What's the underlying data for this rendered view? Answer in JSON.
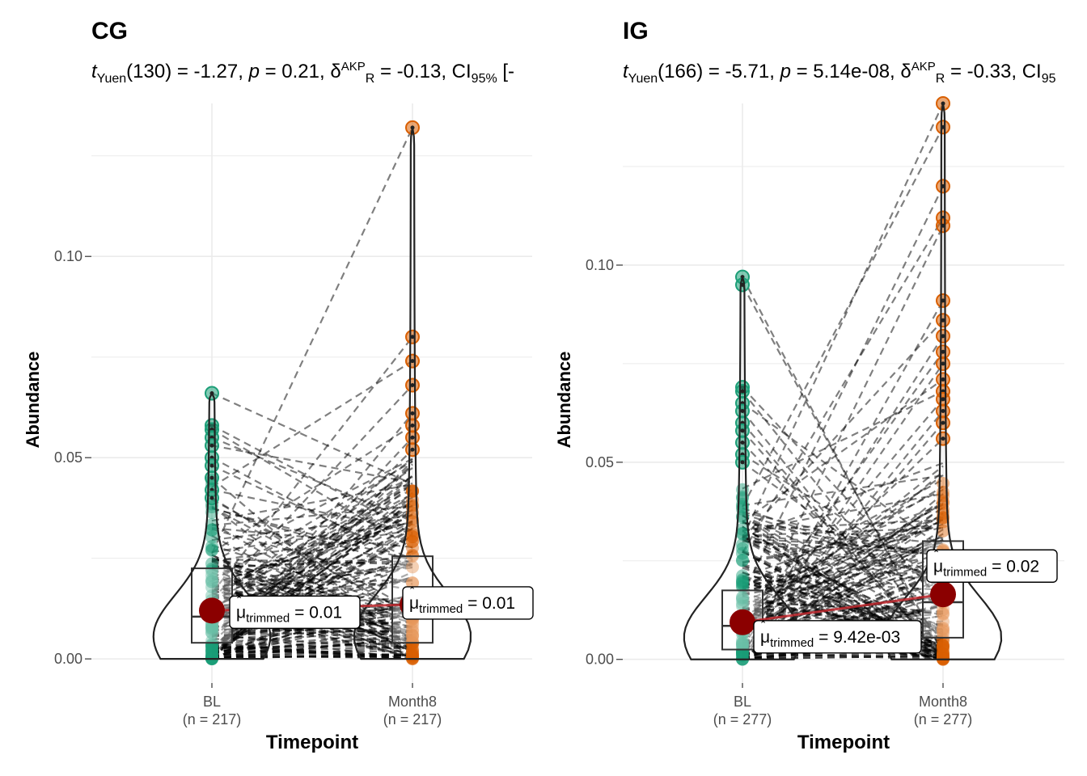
{
  "chart_data": [
    {
      "type": "violin-box-paired",
      "title": "CG",
      "subtitle": {
        "stat_prefix": "t",
        "stat_sub": "Yuen",
        "df": "(130) = -1.27, ",
        "p_label": "p",
        "p_text": " = 0.21, ",
        "delta_symbol": "δ",
        "delta_sup": "AKP",
        "delta_sub": "R",
        "delta_text": " = -0.13, CI",
        "ci_sub": "95%",
        "ci_tail": " [-"
      },
      "xlabel": "Timepoint",
      "ylabel": "Abundance",
      "ylim": [
        -0.006,
        0.138
      ],
      "yticks": [
        0.0,
        0.05,
        0.1
      ],
      "ytick_labels": [
        "0.00",
        "0.05",
        "0.10"
      ],
      "categories": [
        "BL",
        "Month8"
      ],
      "category_counts": [
        "(n = 217)",
        "(n = 217)"
      ],
      "colors": {
        "BL": "#1b9e77",
        "Month8": "#d95f02"
      },
      "box": {
        "BL": {
          "q1": 0.004,
          "median": 0.0105,
          "q3": 0.0225
        },
        "Month8": {
          "q1": 0.004,
          "median": 0.0135,
          "q3": 0.0255
        }
      },
      "trimmed_mean": {
        "BL": 0.012,
        "Month8": 0.0135
      },
      "trimmed_mean_labels": {
        "BL": "= 0.01",
        "Month8": "= 0.01"
      },
      "mean_label_prefix": "μ",
      "mean_label_sub": "trimmed",
      "outliers": {
        "BL": [
          0.066,
          0.058,
          0.057,
          0.055,
          0.053,
          0.05,
          0.048,
          0.045,
          0.042,
          0.04
        ],
        "Month8": [
          0.132,
          0.08,
          0.074,
          0.068,
          0.061,
          0.058,
          0.055,
          0.052
        ]
      },
      "n_pairs": 217
    },
    {
      "type": "violin-box-paired",
      "title": "IG",
      "subtitle": {
        "stat_prefix": "t",
        "stat_sub": "Yuen",
        "df": "(166) = -5.71, ",
        "p_label": "p",
        "p_text": " = 5.14e-08, ",
        "delta_symbol": "δ",
        "delta_sup": "AKP",
        "delta_sub": "R",
        "delta_text": " = -0.33, CI",
        "ci_sub": "95",
        "ci_tail": ""
      },
      "xlabel": "Timepoint",
      "ylabel": "Abundance",
      "ylim": [
        -0.006,
        0.141
      ],
      "yticks": [
        0.0,
        0.05,
        0.1
      ],
      "ytick_labels": [
        "0.00",
        "0.05",
        "0.10"
      ],
      "categories": [
        "BL",
        "Month8"
      ],
      "category_counts": [
        "(n = 277)",
        "(n = 277)"
      ],
      "colors": {
        "BL": "#1b9e77",
        "Month8": "#d95f02"
      },
      "box": {
        "BL": {
          "q1": 0.0025,
          "median": 0.0085,
          "q3": 0.0175
        },
        "Month8": {
          "q1": 0.0055,
          "median": 0.0145,
          "q3": 0.03
        }
      },
      "trimmed_mean": {
        "BL": 0.00942,
        "Month8": 0.0165
      },
      "trimmed_mean_labels": {
        "BL": "= 9.42e-03",
        "Month8": "= 0.02"
      },
      "mean_label_prefix": "μ",
      "mean_label_sub": "trimmed",
      "outliers": {
        "BL": [
          0.097,
          0.095,
          0.069,
          0.068,
          0.065,
          0.063,
          0.06,
          0.058,
          0.055,
          0.052,
          0.05
        ],
        "Month8": [
          0.141,
          0.135,
          0.12,
          0.112,
          0.11,
          0.091,
          0.086,
          0.082,
          0.078,
          0.075,
          0.071,
          0.068,
          0.066,
          0.063,
          0.06,
          0.056
        ]
      },
      "n_pairs": 277
    }
  ]
}
